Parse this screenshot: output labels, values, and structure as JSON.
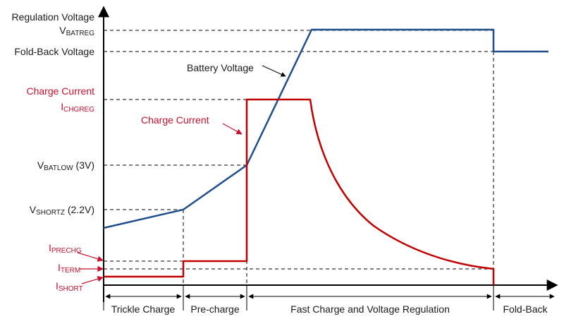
{
  "colors": {
    "voltage_line": "#1f4e8c",
    "current_line": "#c00000",
    "label_red": "#c8102e",
    "label_dark": "#1a1a1a"
  },
  "labels": {
    "regulation_voltage": "Regulation Voltage",
    "vbatreg_main": "V",
    "vbatreg_sub": "BATREG",
    "foldback_voltage": "Fold-Back Voltage",
    "charge_current_axis": "Charge Current",
    "ichgreg_main": "I",
    "ichgreg_sub": "CHGREG",
    "vbatlow_main": "V",
    "vbatlow_sub": "BATLOW",
    "vbatlow_value": " (3V)",
    "vshortz_main": "V",
    "vshortz_sub": "SHORTZ",
    "vshortz_value": " (2.2V)",
    "iprechg_main": "I",
    "iprechg_sub": "PRECHG",
    "iterm_main": "I",
    "iterm_sub": "TERM",
    "ishort_main": "I",
    "ishort_sub": "SHORT",
    "battery_voltage_callout": "Battery Voltage",
    "charge_current_callout": "Charge Current"
  },
  "phases": [
    "Trickle Charge",
    "Pre-charge",
    "Fast Charge and Voltage Regulation",
    "Fold-Back"
  ]
}
